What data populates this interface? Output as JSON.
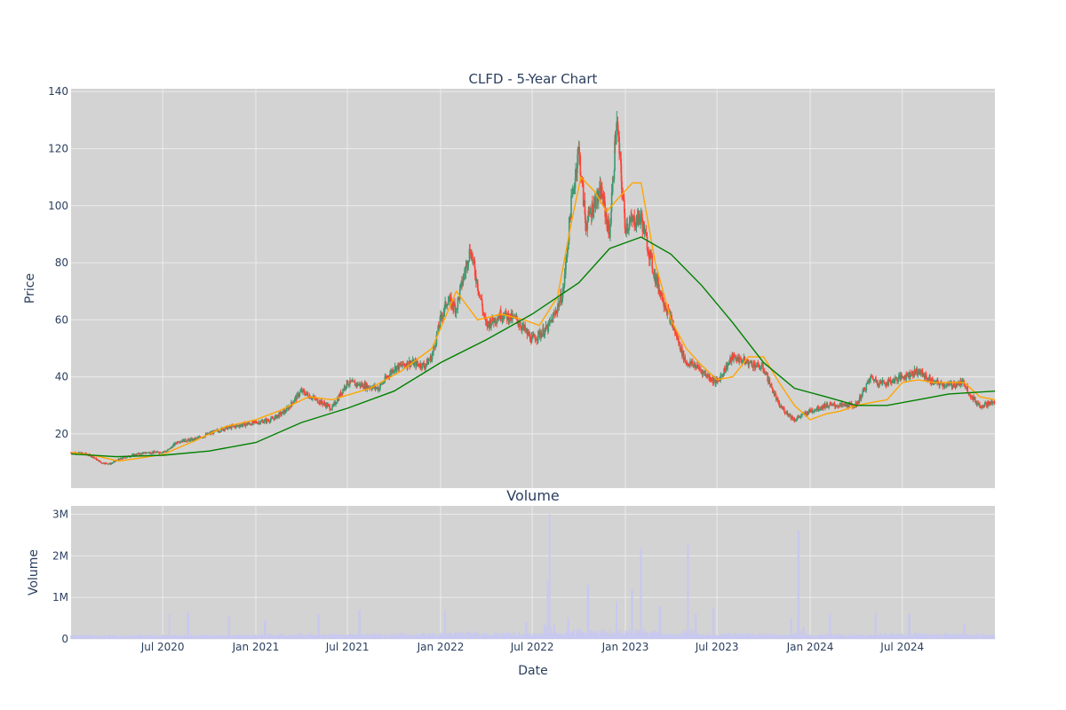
{
  "chart_data": {
    "type": "candlestick",
    "title": "CLFD - 5-Year Chart",
    "colors": {
      "plot_bg": "#d3d3d3",
      "grid": "#ebebeb",
      "up": "#3d9970",
      "down": "#ff4136",
      "ma_short": "#ffa500",
      "ma_long": "#008000",
      "volume": "#c8c8f0"
    },
    "price_panel": {
      "ylabel": "Price",
      "ylim": [
        1,
        141
      ],
      "yticks": [
        20,
        40,
        60,
        80,
        100,
        120,
        140
      ],
      "ytick_labels": [
        "20",
        "40",
        "60",
        "80",
        "100",
        "120",
        "140"
      ]
    },
    "volume_panel": {
      "title": "Volume",
      "ylabel": "Volume",
      "ylim": [
        0,
        3200000
      ],
      "yticks": [
        0,
        1000000,
        2000000,
        3000000
      ],
      "ytick_labels": [
        "0",
        "1M",
        "2M",
        "3M"
      ]
    },
    "xaxis": {
      "xlabel": "Date",
      "range": [
        "2020-01-02",
        "2024-12-31"
      ],
      "ticks": [
        "2020-07-01",
        "2021-01-01",
        "2021-07-01",
        "2022-01-01",
        "2022-07-01",
        "2023-01-01",
        "2023-07-01",
        "2024-01-01",
        "2024-07-01"
      ],
      "tick_labels": [
        "Jul 2020",
        "Jan 2021",
        "Jul 2021",
        "Jan 2022",
        "Jul 2022",
        "Jan 2023",
        "Jul 2023",
        "Jan 2024",
        "Jul 2024"
      ]
    },
    "close_series": {
      "name": "",
      "dates": [
        "2020-01-02",
        "2020-02-01",
        "2020-02-15",
        "2020-03-01",
        "2020-03-20",
        "2020-04-05",
        "2020-05-01",
        "2020-06-01",
        "2020-06-20",
        "2020-07-10",
        "2020-08-01",
        "2020-09-01",
        "2020-10-01",
        "2020-11-01",
        "2020-12-01",
        "2021-01-01",
        "2021-02-01",
        "2021-03-01",
        "2021-04-01",
        "2021-05-01",
        "2021-06-01",
        "2021-07-01",
        "2021-08-01",
        "2021-09-01",
        "2021-10-01",
        "2021-11-01",
        "2021-12-01",
        "2021-12-15",
        "2022-01-01",
        "2022-01-15",
        "2022-02-01",
        "2022-03-01",
        "2022-04-01",
        "2022-05-01",
        "2022-06-01",
        "2022-07-01",
        "2022-08-01",
        "2022-08-15",
        "2022-09-01",
        "2022-09-15",
        "2022-10-01",
        "2022-10-15",
        "2022-11-01",
        "2022-11-15",
        "2022-12-01",
        "2022-12-15",
        "2023-01-01",
        "2023-02-01",
        "2023-03-01",
        "2023-04-01",
        "2023-05-01",
        "2023-05-20",
        "2023-06-01",
        "2023-07-01",
        "2023-08-01",
        "2023-09-01",
        "2023-10-01",
        "2023-11-01",
        "2023-12-01",
        "2024-01-01",
        "2024-02-01",
        "2024-03-01",
        "2024-04-01",
        "2024-05-01",
        "2024-05-15",
        "2024-06-01",
        "2024-07-01",
        "2024-08-01",
        "2024-09-01",
        "2024-10-01",
        "2024-11-01",
        "2024-11-15",
        "2024-12-01",
        "2024-12-31"
      ],
      "values": [
        13.5,
        13,
        12,
        10,
        9.5,
        11,
        12.5,
        13.5,
        13.5,
        14,
        17.5,
        18,
        20,
        22,
        23,
        24,
        25,
        28,
        35,
        32,
        29,
        38,
        37,
        36,
        43,
        45,
        44,
        47,
        60,
        67,
        64,
        85,
        58,
        62,
        60,
        53,
        57,
        62,
        70,
        98,
        120,
        93,
        101,
        105,
        90,
        130,
        93,
        96,
        75,
        60,
        45,
        44,
        42,
        38,
        47,
        45,
        43,
        30,
        25,
        28,
        30,
        30,
        30,
        40,
        38,
        38,
        40,
        42,
        38,
        37,
        38,
        33,
        30,
        31
      ]
    },
    "ma_short": {
      "name": "",
      "dates": [
        "2020-01-02",
        "2020-02-15",
        "2020-04-05",
        "2020-05-15",
        "2020-07-01",
        "2020-09-01",
        "2020-11-01",
        "2021-01-01",
        "2021-02-15",
        "2021-04-15",
        "2021-06-01",
        "2021-08-15",
        "2021-10-15",
        "2021-12-15",
        "2022-02-01",
        "2022-03-15",
        "2022-05-01",
        "2022-06-15",
        "2022-07-15",
        "2022-08-20",
        "2022-09-15",
        "2022-10-05",
        "2022-11-01",
        "2022-11-25",
        "2022-12-20",
        "2023-01-15",
        "2023-02-01",
        "2023-03-01",
        "2023-04-01",
        "2023-05-01",
        "2023-06-01",
        "2023-07-01",
        "2023-08-01",
        "2023-09-01",
        "2023-10-01",
        "2023-11-01",
        "2023-12-01",
        "2024-01-01",
        "2024-02-01",
        "2024-03-01",
        "2024-04-01",
        "2024-05-01",
        "2024-06-01",
        "2024-07-01",
        "2024-08-01",
        "2024-09-01",
        "2024-10-01",
        "2024-11-01",
        "2024-12-01",
        "2024-12-31"
      ],
      "values": [
        13.5,
        12.5,
        10.5,
        11.5,
        12.8,
        17.5,
        22.5,
        25,
        28,
        33,
        32,
        36,
        42,
        50,
        70,
        60,
        62,
        60,
        58,
        68,
        93,
        110,
        105,
        98,
        103,
        108,
        108,
        80,
        60,
        50,
        44,
        39,
        40,
        47,
        47,
        38,
        30,
        25,
        27,
        28,
        30,
        31,
        32,
        38,
        39,
        38,
        38,
        38,
        33,
        32
      ]
    },
    "ma_long": {
      "name": "",
      "dates": [
        "2020-01-02",
        "2020-04-01",
        "2020-07-01",
        "2020-10-01",
        "2021-01-01",
        "2021-04-01",
        "2021-07-01",
        "2021-10-01",
        "2022-01-01",
        "2022-04-01",
        "2022-07-01",
        "2022-10-01",
        "2022-12-01",
        "2023-02-01",
        "2023-04-01",
        "2023-06-01",
        "2023-08-01",
        "2023-10-01",
        "2023-12-01",
        "2024-02-01",
        "2024-04-01",
        "2024-06-01",
        "2024-08-01",
        "2024-10-01",
        "2024-12-31"
      ],
      "values": [
        13,
        12,
        12.5,
        14,
        17,
        24,
        29,
        35,
        45,
        53,
        62,
        73,
        85,
        89,
        83,
        72,
        59,
        45,
        36,
        33,
        30,
        30,
        32,
        34,
        35
      ]
    },
    "volume_spikes": {
      "name": "",
      "dates": [
        "2020-07-15",
        "2020-08-20",
        "2020-11-10",
        "2021-01-20",
        "2021-05-05",
        "2021-07-25",
        "2022-01-10",
        "2022-06-20",
        "2022-08-01",
        "2022-08-05",
        "2022-09-10",
        "2022-10-20",
        "2022-12-15",
        "2023-01-15",
        "2023-02-01",
        "2023-03-10",
        "2023-05-05",
        "2023-05-20",
        "2023-06-25",
        "2023-11-25",
        "2023-12-10",
        "2024-02-10",
        "2024-05-10",
        "2024-07-15",
        "2024-11-01"
      ],
      "values": [
        600000,
        650000,
        550000,
        450000,
        600000,
        700000,
        700000,
        400000,
        1400000,
        3000000,
        500000,
        1300000,
        900000,
        1200000,
        2200000,
        800000,
        2300000,
        600000,
        750000,
        500000,
        2600000,
        600000,
        650000,
        600000,
        350000
      ]
    }
  }
}
